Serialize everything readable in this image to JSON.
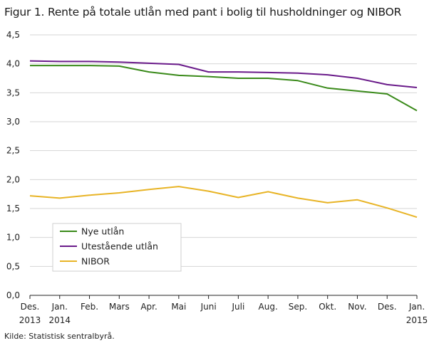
{
  "chart_data": {
    "type": "line",
    "title": "Figur 1. Rente på totale utlån med pant i bolig til husholdninger og NIBOR",
    "source": "Kilde: Statistisk sentralbyrå.",
    "xlabel": "",
    "ylabel": "",
    "ylim": [
      0,
      4.5
    ],
    "yticks": [
      "0,0",
      "0,5",
      "1,0",
      "1,5",
      "2,0",
      "2,5",
      "3,0",
      "3,5",
      "4,0",
      "4,5"
    ],
    "grid": true,
    "legend_position": "bottom-left",
    "categories": [
      [
        "Des.",
        "2013"
      ],
      [
        "Jan.",
        "2014"
      ],
      [
        "Feb.",
        ""
      ],
      [
        "Mars",
        ""
      ],
      [
        "Apr.",
        ""
      ],
      [
        "Mai",
        ""
      ],
      [
        "Juni",
        ""
      ],
      [
        "Juli",
        ""
      ],
      [
        "Aug.",
        ""
      ],
      [
        "Sep.",
        ""
      ],
      [
        "Okt.",
        ""
      ],
      [
        "Nov.",
        ""
      ],
      [
        "Des.",
        ""
      ],
      [
        "Jan.",
        "2015"
      ]
    ],
    "series": [
      {
        "name": "Nye utlån",
        "color": "#3a8a1a",
        "values": [
          3.97,
          3.97,
          3.97,
          3.96,
          3.86,
          3.8,
          3.78,
          3.75,
          3.75,
          3.71,
          3.58,
          3.53,
          3.48,
          3.19
        ]
      },
      {
        "name": "Utestående utlån",
        "color": "#6a1b8a",
        "values": [
          4.05,
          4.04,
          4.04,
          4.03,
          4.01,
          3.99,
          3.86,
          3.86,
          3.85,
          3.84,
          3.81,
          3.75,
          3.64,
          3.59
        ]
      },
      {
        "name": "NIBOR",
        "color": "#e8b426",
        "values": [
          1.72,
          1.68,
          1.73,
          1.77,
          1.83,
          1.88,
          1.8,
          1.69,
          1.79,
          1.68,
          1.6,
          1.65,
          1.51,
          1.35
        ]
      }
    ]
  }
}
